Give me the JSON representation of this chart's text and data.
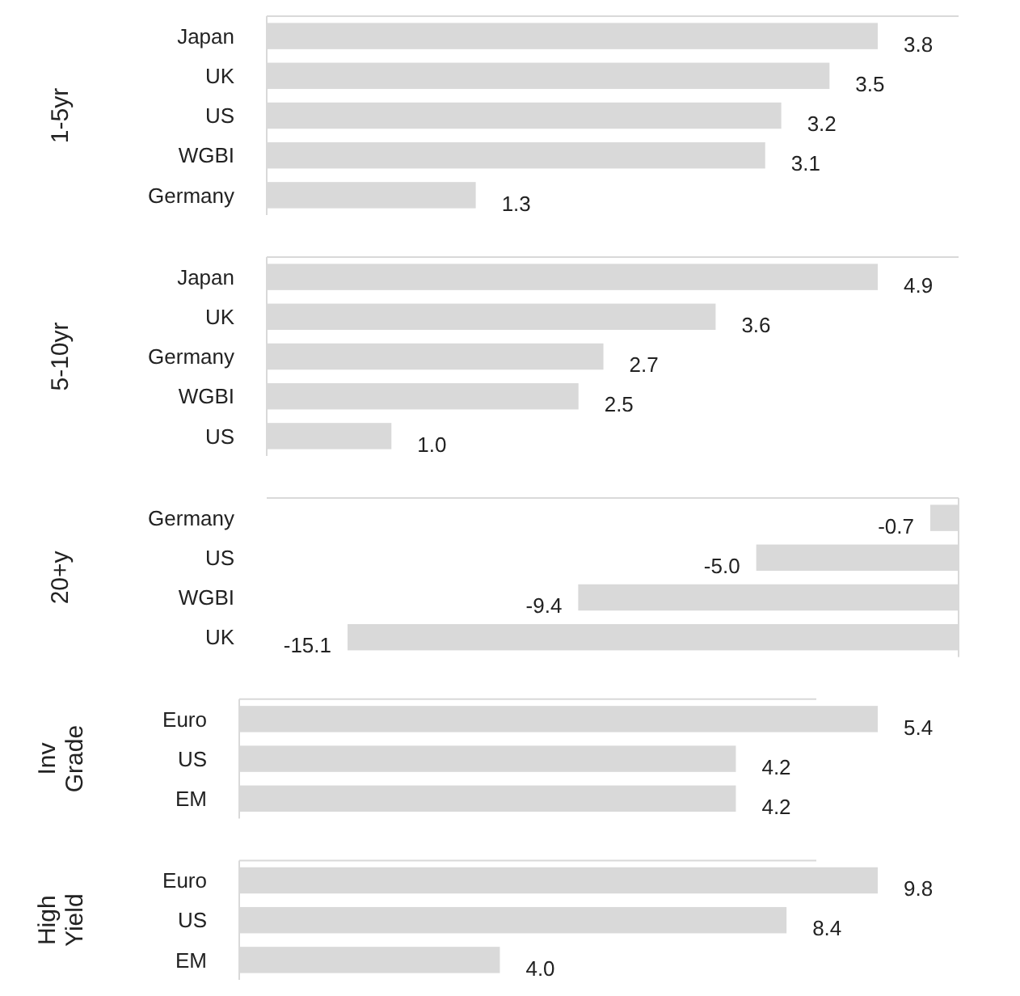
{
  "chart_data": [
    {
      "type": "bar",
      "orientation": "horizontal",
      "ylabel": "1-5yr",
      "categories": [
        "Japan",
        "UK",
        "US",
        "WGBI",
        "Germany"
      ],
      "values": [
        3.8,
        3.5,
        3.2,
        3.1,
        1.3
      ],
      "color": "#d9d9d9",
      "value_labels": [
        "3.8",
        "3.5",
        "3.2",
        "3.1",
        "1.3"
      ]
    },
    {
      "type": "bar",
      "orientation": "horizontal",
      "ylabel": "5-10yr",
      "categories": [
        "Japan",
        "UK",
        "Germany",
        "WGBI",
        "US"
      ],
      "values": [
        4.9,
        3.6,
        2.7,
        2.5,
        1.0
      ],
      "color": "#d9d9d9",
      "value_labels": [
        "4.9",
        "3.6",
        "2.7",
        "2.5",
        "1.0"
      ]
    },
    {
      "type": "bar",
      "orientation": "horizontal",
      "ylabel": "20+y",
      "categories": [
        "Germany",
        "US",
        "WGBI",
        "UK"
      ],
      "values": [
        -0.7,
        -5.0,
        -9.4,
        -15.1
      ],
      "color": "#d9d9d9",
      "value_labels": [
        "-0.7",
        "-5.0",
        "-9.4",
        "-15.1"
      ]
    },
    {
      "type": "bar",
      "orientation": "horizontal",
      "ylabel": "Inv Grade",
      "categories": [
        "Euro",
        "US",
        "EM"
      ],
      "values": [
        5.4,
        4.2,
        4.2
      ],
      "color": "#d9d9d9",
      "value_labels": [
        "5.4",
        "4.2",
        "4.2"
      ]
    },
    {
      "type": "bar",
      "orientation": "horizontal",
      "ylabel": "High Yield",
      "categories": [
        "Euro",
        "US",
        "EM"
      ],
      "values": [
        9.8,
        8.4,
        4.0
      ],
      "color": "#d9d9d9",
      "value_labels": [
        "9.8",
        "8.4",
        "4.0"
      ]
    }
  ]
}
